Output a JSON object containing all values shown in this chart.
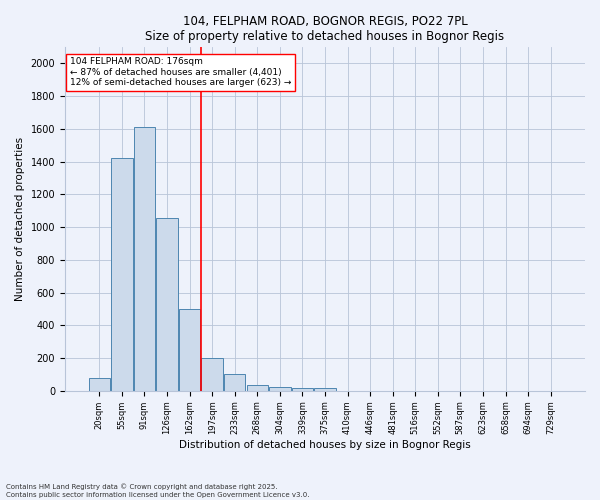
{
  "title1": "104, FELPHAM ROAD, BOGNOR REGIS, PO22 7PL",
  "title2": "Size of property relative to detached houses in Bognor Regis",
  "xlabel": "Distribution of detached houses by size in Bognor Regis",
  "ylabel": "Number of detached properties",
  "bin_labels": [
    "20sqm",
    "55sqm",
    "91sqm",
    "126sqm",
    "162sqm",
    "197sqm",
    "233sqm",
    "268sqm",
    "304sqm",
    "339sqm",
    "375sqm",
    "410sqm",
    "446sqm",
    "481sqm",
    "516sqm",
    "552sqm",
    "587sqm",
    "623sqm",
    "658sqm",
    "694sqm",
    "729sqm"
  ],
  "bar_values": [
    80,
    1420,
    1610,
    1055,
    500,
    200,
    100,
    38,
    25,
    20,
    18,
    0,
    0,
    0,
    0,
    0,
    0,
    0,
    0,
    0,
    0
  ],
  "bar_color": "#ccdaeb",
  "bar_edge_color": "#4d86b0",
  "vline_x": 4.5,
  "vline_color": "red",
  "annotation_text": "104 FELPHAM ROAD: 176sqm\n← 87% of detached houses are smaller (4,401)\n12% of semi-detached houses are larger (623) →",
  "annotation_box_color": "white",
  "annotation_box_edge": "red",
  "ylim": [
    0,
    2100
  ],
  "yticks": [
    0,
    200,
    400,
    600,
    800,
    1000,
    1200,
    1400,
    1600,
    1800,
    2000
  ],
  "footnote1": "Contains HM Land Registry data © Crown copyright and database right 2025.",
  "footnote2": "Contains public sector information licensed under the Open Government Licence v3.0.",
  "bg_color": "#eef2fb",
  "grid_color": "#b8c4d8"
}
